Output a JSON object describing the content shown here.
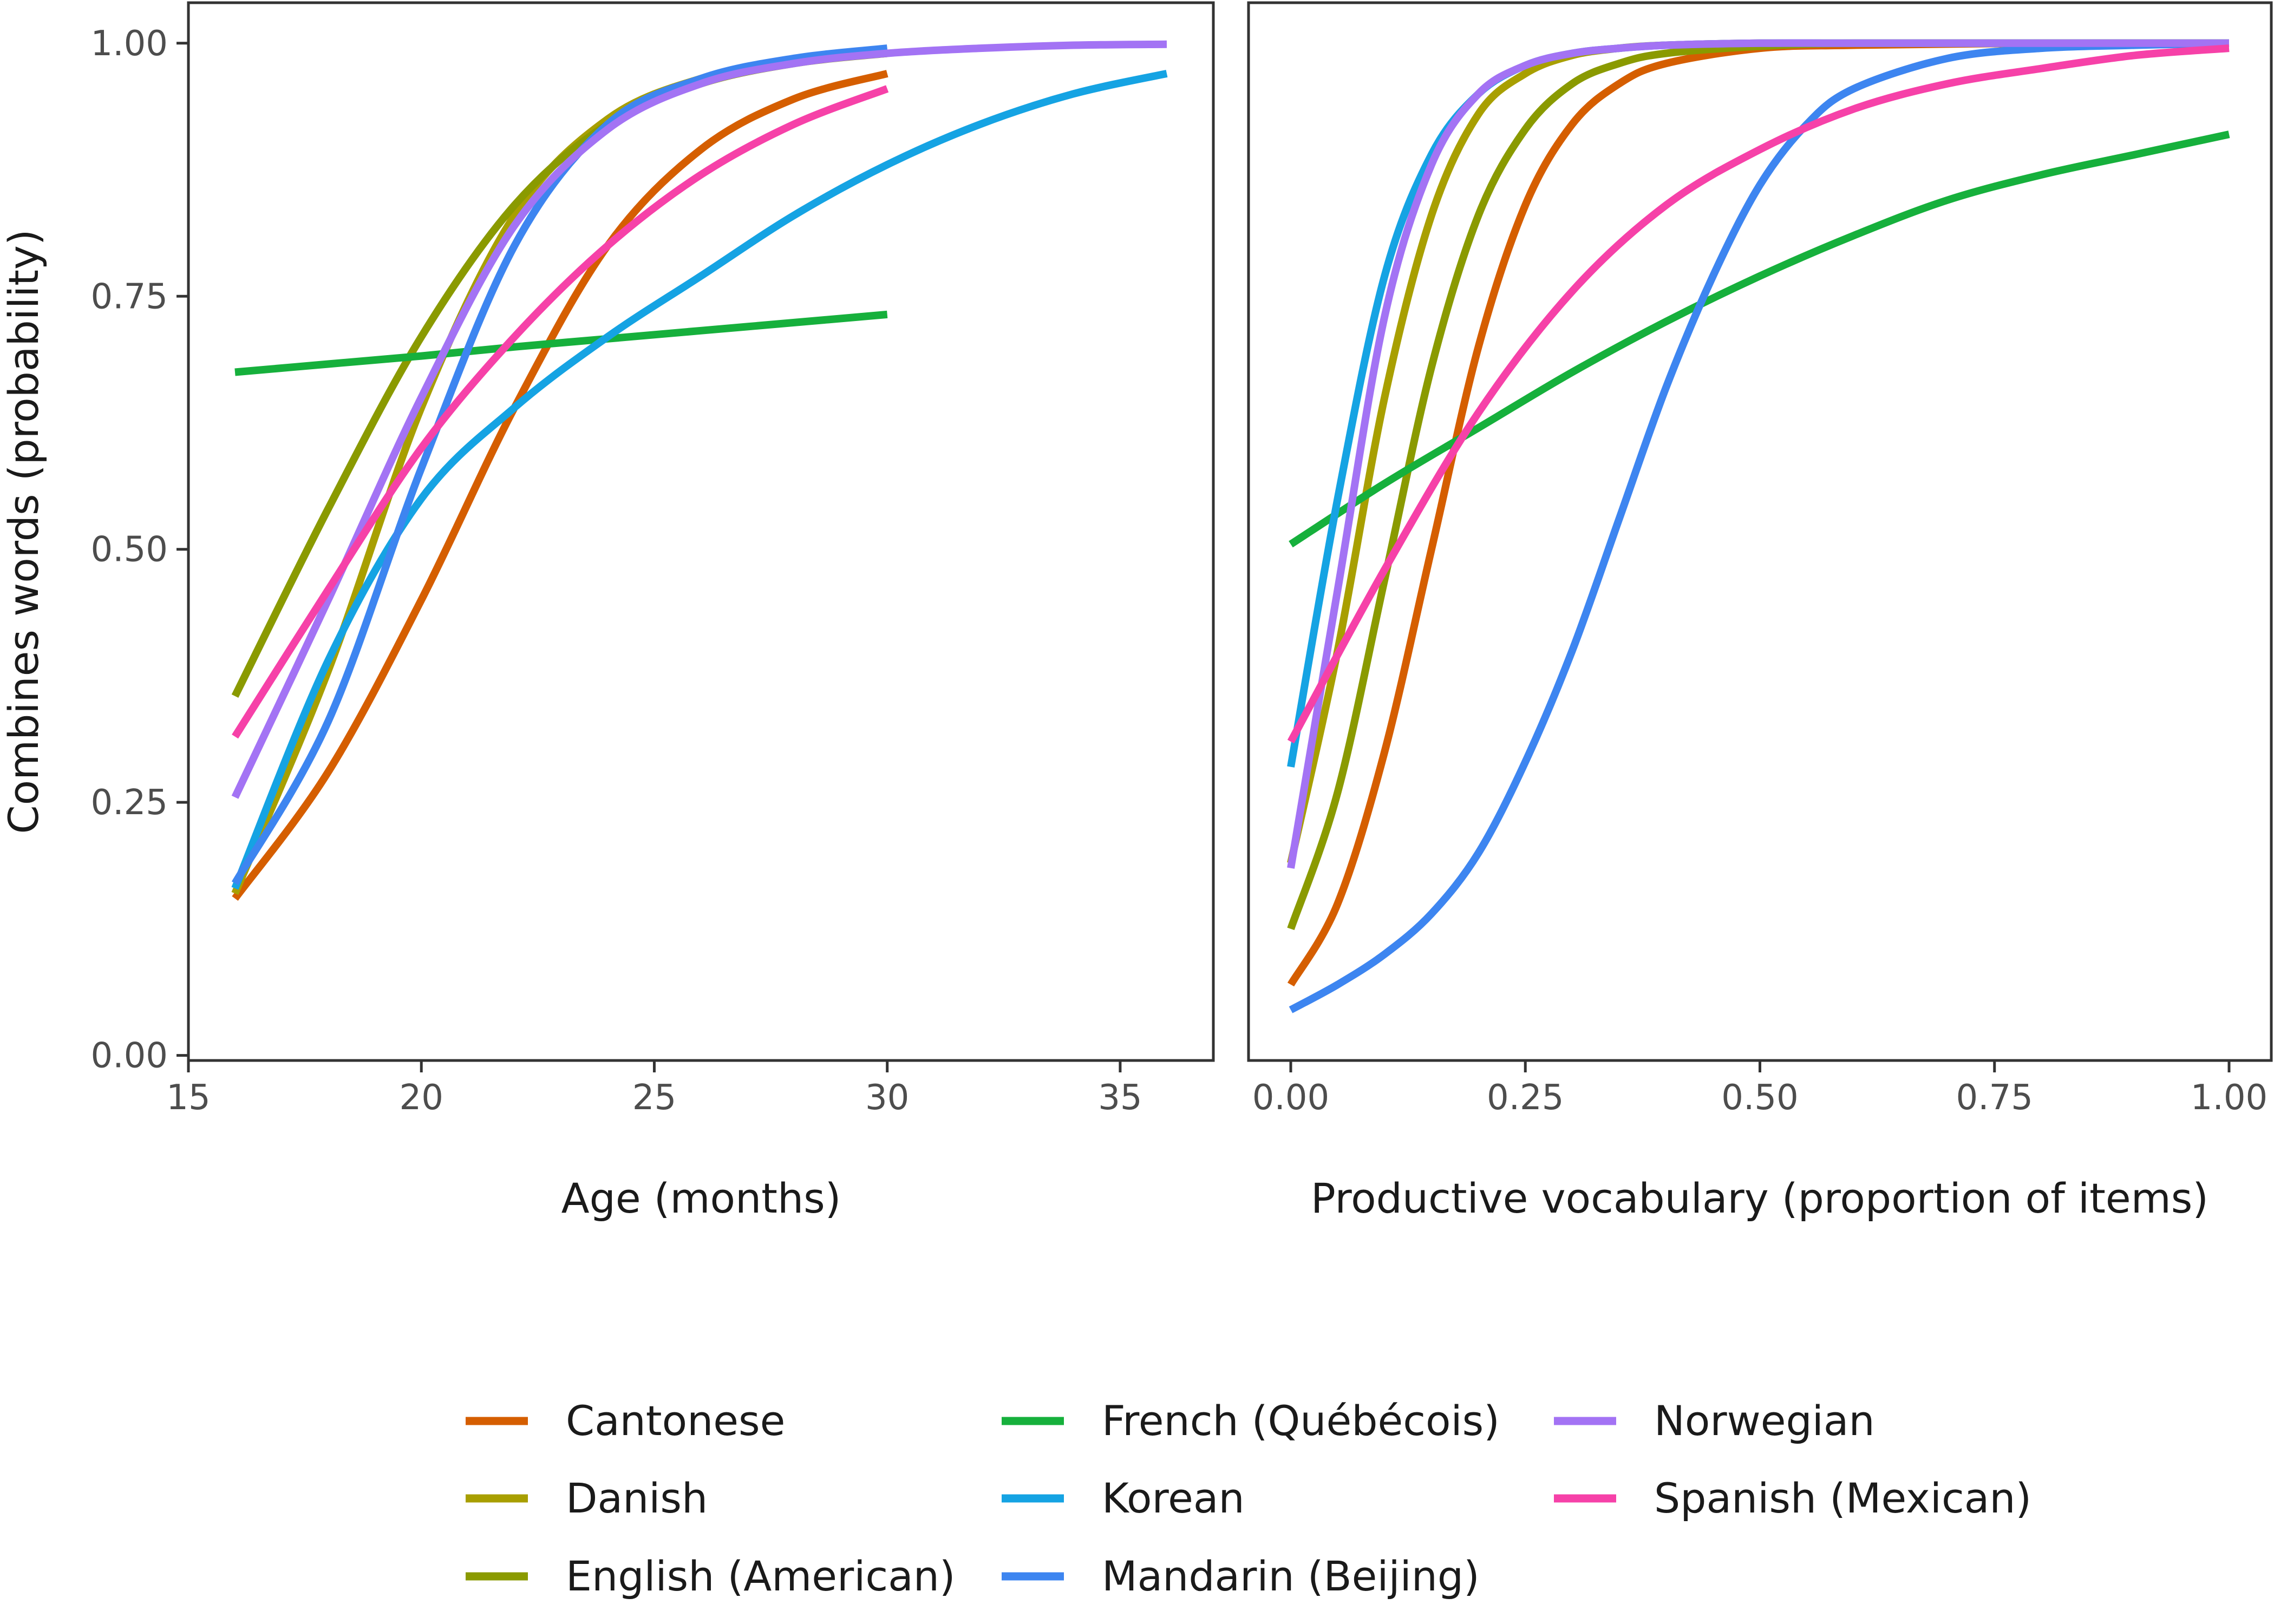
{
  "chart_data": {
    "type": "line",
    "ylabel": "Combines words (probability)",
    "legend_position": "bottom",
    "grid": false,
    "panels": [
      {
        "id": "age",
        "xlabel": "Age (months)",
        "xlim": [
          15,
          37
        ],
        "ylim": [
          -0.005,
          1.04
        ],
        "xticks": [
          15,
          20,
          25,
          30,
          35
        ],
        "xtick_labels": [
          "15",
          "20",
          "25",
          "30",
          "35"
        ],
        "series": [
          {
            "name": "Cantonese",
            "x": [
              16,
              18,
              20,
              22,
              24,
              26,
              28,
              30
            ],
            "y": [
              0.155,
              0.28,
              0.45,
              0.64,
              0.8,
              0.895,
              0.945,
              0.97
            ]
          },
          {
            "name": "Danish",
            "x": [
              16,
              18,
              20,
              22,
              24,
              26,
              28,
              30
            ],
            "y": [
              0.16,
              0.38,
              0.64,
              0.83,
              0.925,
              0.965,
              0.983,
              0.99
            ]
          },
          {
            "name": "English (American)",
            "x": [
              16,
              18,
              20,
              22,
              24,
              26,
              28,
              30
            ],
            "y": [
              0.355,
              0.54,
              0.71,
              0.84,
              0.92,
              0.96,
              0.98,
              0.99
            ]
          },
          {
            "name": "French (Québécois)",
            "x": [
              16,
              18,
              20,
              22,
              24,
              26,
              28,
              30
            ],
            "y": [
              0.675,
              0.683,
              0.691,
              0.7,
              0.708,
              0.716,
              0.724,
              0.732
            ]
          },
          {
            "name": "Korean",
            "x": [
              16,
              18,
              20,
              22,
              24,
              26,
              28,
              30,
              32,
              34,
              36
            ],
            "y": [
              0.165,
              0.39,
              0.55,
              0.64,
              0.71,
              0.77,
              0.83,
              0.88,
              0.92,
              0.95,
              0.97
            ]
          },
          {
            "name": "Mandarin (Beijing)",
            "x": [
              16,
              18,
              20,
              22,
              24,
              26,
              28,
              30
            ],
            "y": [
              0.17,
              0.33,
              0.58,
              0.8,
              0.92,
              0.965,
              0.985,
              0.995
            ]
          },
          {
            "name": "Norwegian",
            "x": [
              16,
              18,
              20,
              22,
              24,
              26,
              28,
              30,
              32,
              34,
              36
            ],
            "y": [
              0.255,
              0.45,
              0.65,
              0.82,
              0.915,
              0.96,
              0.98,
              0.99,
              0.995,
              0.998,
              0.999
            ]
          },
          {
            "name": "Spanish (Mexican)",
            "x": [
              16,
              18,
              20,
              22,
              24,
              26,
              28,
              30
            ],
            "y": [
              0.315,
              0.46,
              0.6,
              0.71,
              0.8,
              0.87,
              0.92,
              0.955
            ]
          }
        ]
      },
      {
        "id": "vocab",
        "xlabel": "Productive vocabulary (proportion of items)",
        "xlim": [
          -0.045,
          1.045
        ],
        "ylim": [
          -0.005,
          1.04
        ],
        "xticks": [
          0,
          0.25,
          0.5,
          0.75,
          1
        ],
        "xtick_labels": [
          "0.00",
          "0.25",
          "0.50",
          "0.75",
          "1.00"
        ],
        "series": [
          {
            "name": "Cantonese",
            "x": [
              0,
              0.05,
              0.1,
              0.15,
              0.2,
              0.25,
              0.3,
              0.35,
              0.4,
              0.5,
              0.6,
              0.8,
              1
            ],
            "y": [
              0.07,
              0.15,
              0.3,
              0.5,
              0.7,
              0.84,
              0.92,
              0.96,
              0.98,
              0.995,
              0.998,
              1,
              1
            ]
          },
          {
            "name": "Danish",
            "x": [
              0,
              0.05,
              0.1,
              0.15,
              0.2,
              0.25,
              0.3,
              0.35,
              0.4,
              0.5,
              0.6,
              0.8,
              1
            ],
            "y": [
              0.19,
              0.4,
              0.65,
              0.83,
              0.93,
              0.97,
              0.988,
              0.995,
              0.998,
              1,
              1,
              1,
              1
            ]
          },
          {
            "name": "English (American)",
            "x": [
              0,
              0.05,
              0.1,
              0.15,
              0.2,
              0.25,
              0.3,
              0.35,
              0.4,
              0.5,
              0.6,
              0.8,
              1
            ],
            "y": [
              0.125,
              0.26,
              0.47,
              0.68,
              0.83,
              0.915,
              0.96,
              0.98,
              0.99,
              0.997,
              1,
              1,
              1
            ]
          },
          {
            "name": "French (Québécois)",
            "x": [
              0,
              0.1,
              0.2,
              0.3,
              0.4,
              0.5,
              0.6,
              0.7,
              0.8,
              0.9,
              1
            ],
            "y": [
              0.505,
              0.565,
              0.62,
              0.675,
              0.725,
              0.77,
              0.81,
              0.845,
              0.87,
              0.89,
              0.91
            ]
          },
          {
            "name": "Korean",
            "x": [
              0,
              0.05,
              0.1,
              0.15,
              0.2,
              0.25,
              0.3,
              0.35,
              0.4,
              0.5,
              0.6,
              0.8,
              1
            ],
            "y": [
              0.285,
              0.55,
              0.77,
              0.89,
              0.95,
              0.978,
              0.99,
              0.995,
              0.998,
              1,
              1,
              1,
              1
            ]
          },
          {
            "name": "Mandarin (Beijing)",
            "x": [
              0,
              0.05,
              0.1,
              0.15,
              0.2,
              0.25,
              0.3,
              0.35,
              0.4,
              0.45,
              0.5,
              0.55,
              0.6,
              0.7,
              0.8,
              0.9,
              1
            ],
            "y": [
              0.045,
              0.07,
              0.1,
              0.14,
              0.2,
              0.29,
              0.4,
              0.53,
              0.66,
              0.77,
              0.86,
              0.92,
              0.955,
              0.985,
              0.995,
              0.998,
              1
            ]
          },
          {
            "name": "Norwegian",
            "x": [
              0,
              0.05,
              0.1,
              0.15,
              0.2,
              0.25,
              0.3,
              0.35,
              0.4,
              0.5,
              0.6,
              0.8,
              1
            ],
            "y": [
              0.185,
              0.46,
              0.73,
              0.88,
              0.95,
              0.978,
              0.99,
              0.995,
              0.998,
              1,
              1,
              1,
              1
            ]
          },
          {
            "name": "Spanish (Mexican)",
            "x": [
              0,
              0.1,
              0.2,
              0.3,
              0.4,
              0.5,
              0.6,
              0.7,
              0.8,
              0.9,
              1
            ],
            "y": [
              0.31,
              0.48,
              0.635,
              0.755,
              0.84,
              0.895,
              0.935,
              0.96,
              0.975,
              0.988,
              0.995
            ]
          }
        ]
      }
    ],
    "yticks": [
      0,
      0.25,
      0.5,
      0.75,
      1
    ],
    "ytick_labels": [
      "0.00",
      "0.25",
      "0.50",
      "0.75",
      "1.00"
    ],
    "legend": [
      {
        "name": "Cantonese",
        "color": "#d55e00"
      },
      {
        "name": "Danish",
        "color": "#a89f00"
      },
      {
        "name": "English (American)",
        "color": "#8a9a00"
      },
      {
        "name": "French (Québécois)",
        "color": "#16b03c"
      },
      {
        "name": "Korean",
        "color": "#15a3e3"
      },
      {
        "name": "Mandarin (Beijing)",
        "color": "#3d85f0"
      },
      {
        "name": "Norwegian",
        "color": "#a373f4"
      },
      {
        "name": "Spanish (Mexican)",
        "color": "#f641a8"
      }
    ]
  }
}
